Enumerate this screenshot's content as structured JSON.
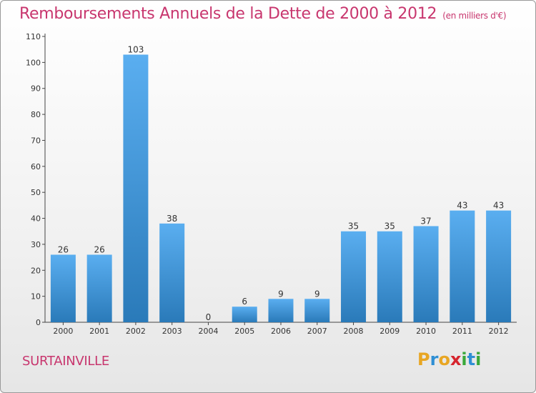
{
  "header": {
    "title": "Remboursements Annuels de la Dette de 2000 à 2012",
    "unit": "(en milliers d'€)"
  },
  "footer": {
    "commune": "SURTAINVILLE",
    "logo_letters": [
      "P",
      "r",
      "o",
      "x",
      "i",
      "t",
      "i"
    ]
  },
  "colors": {
    "title": "#c8366e",
    "bar_top": "#5aaef0",
    "bar_bottom": "#2a7ab9",
    "logo": [
      "#e8a623",
      "#2f8fd4",
      "#e8a623",
      "#d6252e",
      "#3aa83a",
      "#2f8fd4",
      "#3aa83a"
    ]
  },
  "chart_data": {
    "type": "bar",
    "categories": [
      "2000",
      "2001",
      "2002",
      "2003",
      "2004",
      "2005",
      "2006",
      "2007",
      "2008",
      "2009",
      "2010",
      "2011",
      "2012"
    ],
    "values": [
      26,
      26,
      103,
      38,
      0,
      6,
      9,
      9,
      35,
      35,
      37,
      43,
      43
    ],
    "data_labels": [
      "26",
      "26",
      "103",
      "38",
      "0",
      "6",
      "9",
      "9",
      "35",
      "35",
      "37",
      "43",
      "43"
    ],
    "yticks": [
      0,
      10,
      20,
      30,
      40,
      50,
      60,
      70,
      80,
      90,
      100,
      110
    ],
    "ylim": [
      0,
      110
    ],
    "grid": false,
    "legend": "none"
  }
}
